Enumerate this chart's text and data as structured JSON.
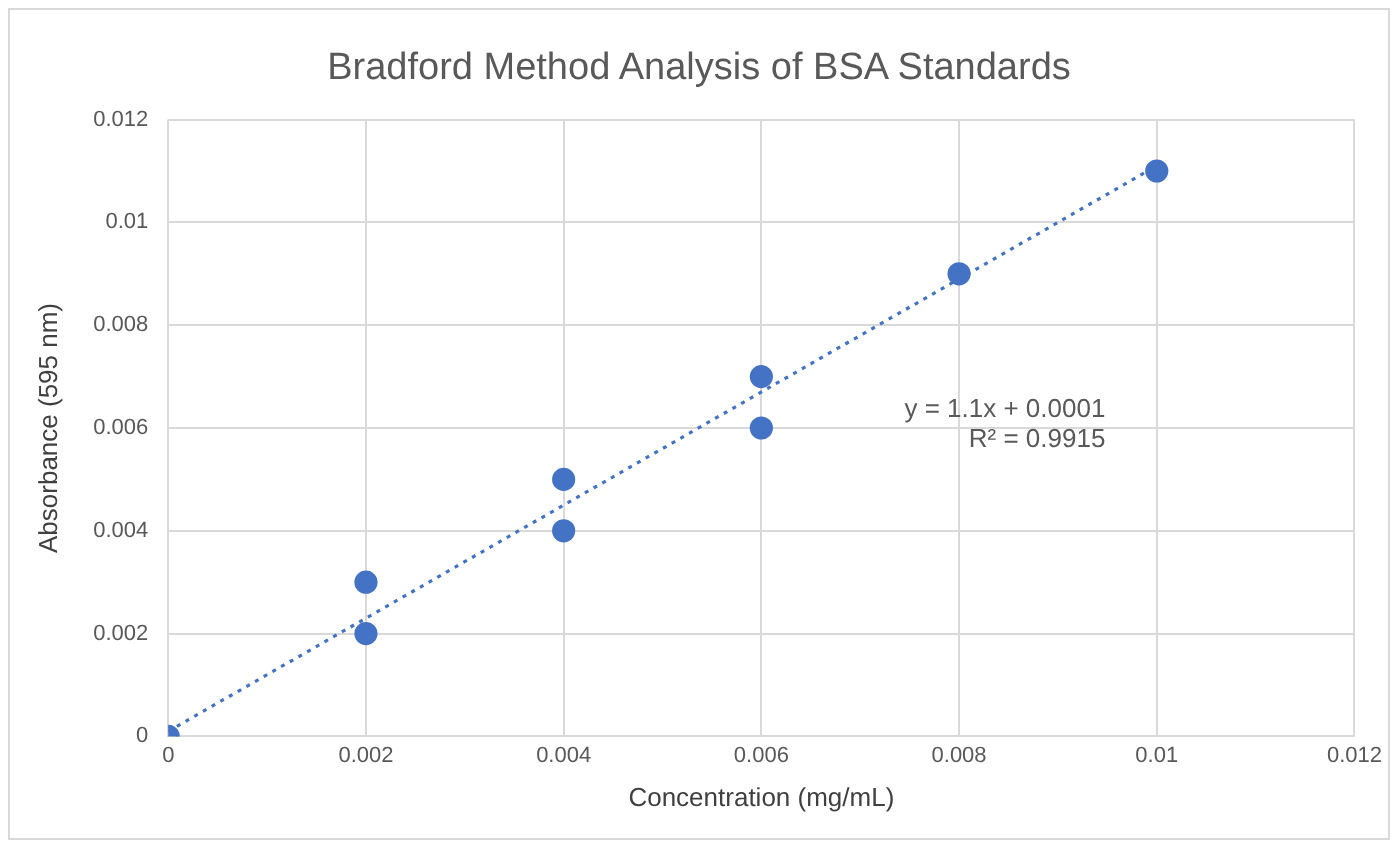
{
  "chart_data": {
    "type": "scatter",
    "title": "Bradford Method Analysis of BSA Standards",
    "xlabel": "Concentration (mg/mL)",
    "ylabel": "Absorbance (595 nm)",
    "xlim": [
      0,
      0.012
    ],
    "xticks": [
      0,
      0.002,
      0.004,
      0.006,
      0.008,
      0.01,
      0.012
    ],
    "ylim": [
      0,
      0.012
    ],
    "yticks": [
      0,
      0.002,
      0.004,
      0.006,
      0.008,
      0.01,
      0.012
    ],
    "grid": true,
    "legend": false,
    "series": [
      {
        "type": "scatter",
        "color": "#4472c4",
        "marker": "circle",
        "x": [
          0,
          0.002,
          0.002,
          0.004,
          0.004,
          0.006,
          0.006,
          0.008,
          0.01
        ],
        "values": [
          0,
          0.003,
          0.002,
          0.005,
          0.004,
          0.007,
          0.006,
          0.009,
          0.011
        ]
      },
      {
        "type": "line",
        "color": "#4472c4",
        "marker": "none",
        "line_style": "dotted",
        "x": [
          0,
          0.01
        ],
        "values": [
          0.0001,
          0.0111
        ]
      }
    ],
    "annotations": [
      "y = 1.1x + 0.0001",
      "R² = 0.9915"
    ]
  }
}
